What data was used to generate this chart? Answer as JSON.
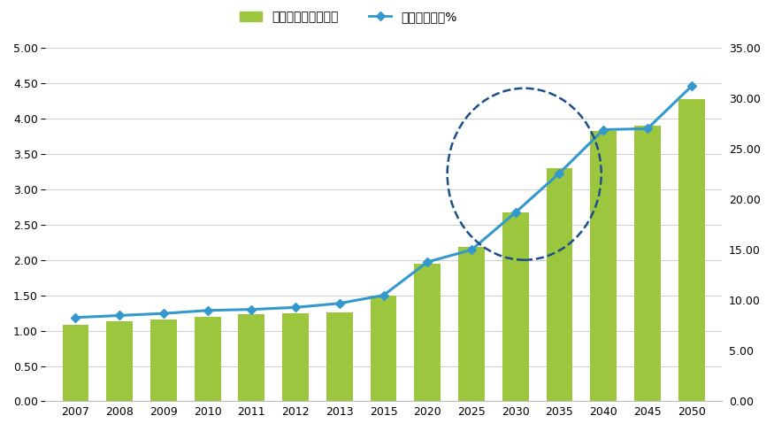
{
  "years": [
    2007,
    2008,
    2009,
    2010,
    2011,
    2012,
    2013,
    2015,
    2020,
    2025,
    2030,
    2035,
    2040,
    2045,
    2050
  ],
  "bar_values": [
    1.08,
    1.13,
    1.16,
    1.19,
    1.23,
    1.24,
    1.26,
    1.5,
    1.95,
    2.18,
    2.67,
    3.3,
    3.83,
    3.9,
    4.27
  ],
  "line_values": [
    8.3,
    8.5,
    8.7,
    9.0,
    9.1,
    9.3,
    9.7,
    10.5,
    13.8,
    15.0,
    18.7,
    22.6,
    26.9,
    27.0,
    31.2
  ],
  "bar_color": "#9dc63f",
  "line_color": "#3399cc",
  "bar_label": "老年人口数（亿人）",
  "line_label": "老年人口占比%",
  "ylim_left": [
    0,
    5.0
  ],
  "ylim_right": [
    0,
    35.0
  ],
  "yticks_left": [
    0.0,
    0.5,
    1.0,
    1.5,
    2.0,
    2.5,
    3.0,
    3.5,
    4.0,
    4.5,
    5.0
  ],
  "yticks_right": [
    0.0,
    5.0,
    10.0,
    15.0,
    20.0,
    25.0,
    30.0,
    35.0
  ],
  "background_color": "#ffffff",
  "grid_color": "#cccccc",
  "ellipse_color": "#1a4f8a"
}
